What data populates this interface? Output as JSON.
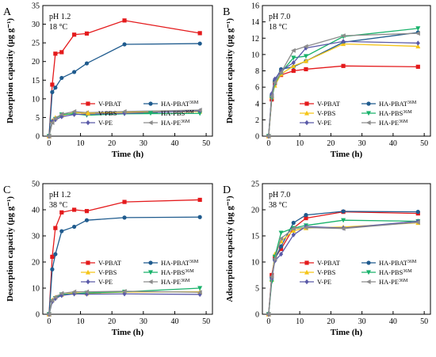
{
  "chart_data": [
    {
      "panel": "A",
      "type": "line",
      "condition_ph": "pH 1.2",
      "condition_temp": "18 °C",
      "xlabel": "Time (h)",
      "ylabel": "Desorption capacity (µg g⁻¹)",
      "xlim": [
        -2,
        52
      ],
      "ylim": [
        0,
        35
      ],
      "xticks": [
        0,
        10,
        20,
        30,
        40,
        50
      ],
      "yticks": [
        0,
        5,
        10,
        15,
        20,
        25,
        30,
        35
      ],
      "legend_position": "bottom-center",
      "x": [
        0,
        1,
        2,
        4,
        8,
        12,
        24,
        48
      ],
      "series": [
        {
          "name": "V-PBAT",
          "color": "#e41a1c",
          "marker": "square",
          "values": [
            0,
            13.8,
            22.1,
            22.5,
            27.2,
            27.5,
            31.0,
            27.6
          ]
        },
        {
          "name": "HA-PBAT",
          "sup": "36M",
          "color": "#1f5b8e",
          "marker": "circle",
          "values": [
            0,
            11.8,
            13.0,
            15.6,
            17.2,
            19.5,
            24.6,
            24.8
          ]
        },
        {
          "name": "V-PBS",
          "color": "#f5c518",
          "marker": "triangle-up",
          "values": [
            0,
            4.2,
            5.0,
            5.5,
            6.3,
            6.2,
            6.4,
            6.6
          ]
        },
        {
          "name": "HA-PBS",
          "sup": "36M",
          "color": "#19b26b",
          "marker": "triangle-down",
          "values": [
            0,
            3.8,
            4.6,
            5.8,
            6.0,
            5.6,
            6.0,
            6.1
          ]
        },
        {
          "name": "V-PE",
          "color": "#5a5aa8",
          "marker": "diamond",
          "values": [
            0,
            4.0,
            4.4,
            5.2,
            5.8,
            5.9,
            6.1,
            6.8
          ]
        },
        {
          "name": "HA-PE",
          "sup": "36M",
          "color": "#8c8c8c",
          "marker": "triangle-left",
          "values": [
            0,
            3.6,
            4.8,
            5.9,
            6.6,
            6.3,
            6.6,
            7.0
          ]
        }
      ]
    },
    {
      "panel": "B",
      "type": "line",
      "condition_ph": "pH 7.0",
      "condition_temp": "18 °C",
      "xlabel": "Time (h)",
      "ylabel": "Desorption capacity (µg g⁻¹)",
      "xlim": [
        -2,
        52
      ],
      "ylim": [
        0,
        16
      ],
      "xticks": [
        0,
        10,
        20,
        30,
        40,
        50
      ],
      "yticks": [
        0,
        2,
        4,
        6,
        8,
        10,
        12,
        14,
        16
      ],
      "legend_position": "bottom-center",
      "x": [
        0,
        1,
        2,
        4,
        8,
        12,
        24,
        48
      ],
      "series": [
        {
          "name": "V-PBAT",
          "color": "#e41a1c",
          "marker": "square",
          "values": [
            0,
            4.5,
            6.5,
            7.5,
            8.0,
            8.2,
            8.6,
            8.5
          ]
        },
        {
          "name": "HA-PBAT",
          "sup": "36M",
          "color": "#1f5b8e",
          "marker": "circle",
          "values": [
            0,
            5.0,
            6.8,
            8.2,
            8.5,
            9.2,
            11.5,
            12.7
          ]
        },
        {
          "name": "V-PBS",
          "color": "#f5c518",
          "marker": "triangle-up",
          "values": [
            0,
            4.8,
            6.2,
            7.6,
            8.6,
            9.2,
            11.3,
            11.0
          ]
        },
        {
          "name": "HA-PBS",
          "sup": "36M",
          "color": "#19b26b",
          "marker": "triangle-down",
          "values": [
            0,
            4.6,
            6.4,
            7.8,
            9.6,
            9.8,
            12.2,
            13.2
          ]
        },
        {
          "name": "V-PE",
          "color": "#5a5aa8",
          "marker": "diamond",
          "values": [
            0,
            5.2,
            7.0,
            8.0,
            9.0,
            10.8,
            11.6,
            11.4
          ]
        },
        {
          "name": "HA-PE",
          "sup": "36M",
          "color": "#8c8c8c",
          "marker": "triangle-left",
          "values": [
            0,
            4.9,
            6.6,
            7.8,
            10.5,
            11.0,
            12.3,
            12.6
          ]
        }
      ]
    },
    {
      "panel": "C",
      "type": "line",
      "condition_ph": "pH 1.2",
      "condition_temp": "38 °C",
      "xlabel": "Time (h)",
      "ylabel": "Desorption capacity (µg g⁻¹)",
      "xlim": [
        -2,
        52
      ],
      "ylim": [
        0,
        50
      ],
      "xticks": [
        0,
        10,
        20,
        30,
        40,
        50
      ],
      "yticks": [
        0,
        10,
        20,
        30,
        40,
        50
      ],
      "legend_position": "bottom-center",
      "x": [
        0,
        1,
        2,
        4,
        8,
        12,
        24,
        48
      ],
      "series": [
        {
          "name": "V-PBAT",
          "color": "#e41a1c",
          "marker": "square",
          "values": [
            0,
            22.0,
            33.0,
            39.0,
            40.0,
            39.5,
            43.0,
            43.8
          ]
        },
        {
          "name": "HA-PBAT",
          "sup": "36M",
          "color": "#1f5b8e",
          "marker": "circle",
          "values": [
            0,
            17.2,
            23.0,
            31.8,
            33.5,
            36.0,
            37.0,
            37.2
          ]
        },
        {
          "name": "V-PBS",
          "color": "#f5c518",
          "marker": "triangle-up",
          "values": [
            0,
            5.5,
            6.5,
            7.5,
            8.2,
            8.0,
            8.5,
            8.6
          ]
        },
        {
          "name": "HA-PBS",
          "sup": "36M",
          "color": "#19b26b",
          "marker": "triangle-down",
          "values": [
            0,
            5.0,
            6.2,
            7.6,
            7.8,
            8.2,
            8.6,
            10.0
          ]
        },
        {
          "name": "V-PE",
          "color": "#5a5aa8",
          "marker": "diamond",
          "values": [
            0,
            4.8,
            6.0,
            7.2,
            7.8,
            7.7,
            7.8,
            7.6
          ]
        },
        {
          "name": "HA-PE",
          "sup": "36M",
          "color": "#8c8c8c",
          "marker": "triangle-left",
          "values": [
            0,
            5.4,
            6.6,
            8.0,
            8.6,
            8.6,
            8.8,
            8.4
          ]
        }
      ]
    },
    {
      "panel": "D",
      "type": "line",
      "condition_ph": "pH 7.0",
      "condition_temp": "38 °C",
      "xlabel": "Time (h)",
      "ylabel": "Adsorption capacity (µg g⁻¹)",
      "xlim": [
        -2,
        52
      ],
      "ylim": [
        0,
        25
      ],
      "xticks": [
        0,
        10,
        20,
        30,
        40,
        50
      ],
      "yticks": [
        0,
        5,
        10,
        15,
        20,
        25
      ],
      "legend_position": "bottom-center",
      "x": [
        0,
        1,
        2,
        4,
        8,
        12,
        24,
        48
      ],
      "series": [
        {
          "name": "V-PBAT",
          "color": "#e41a1c",
          "marker": "square",
          "values": [
            0,
            7.5,
            10.8,
            12.5,
            16.5,
            18.4,
            19.6,
            19.3
          ]
        },
        {
          "name": "HA-PBAT",
          "sup": "36M",
          "color": "#1f5b8e",
          "marker": "circle",
          "values": [
            0,
            7.0,
            10.5,
            13.0,
            17.5,
            19.0,
            19.7,
            19.6
          ]
        },
        {
          "name": "V-PBS",
          "color": "#f5c518",
          "marker": "triangle-up",
          "values": [
            0,
            6.6,
            11.5,
            14.0,
            16.0,
            16.5,
            16.7,
            17.5
          ]
        },
        {
          "name": "HA-PBS",
          "sup": "36M",
          "color": "#19b26b",
          "marker": "triangle-down",
          "values": [
            0,
            6.2,
            11.0,
            15.6,
            16.5,
            17.0,
            18.0,
            17.8
          ]
        },
        {
          "name": "V-PE",
          "color": "#5a5aa8",
          "marker": "diamond",
          "values": [
            0,
            6.8,
            10.2,
            11.5,
            15.2,
            16.8,
            16.5,
            17.8
          ]
        },
        {
          "name": "HA-PE",
          "sup": "36M",
          "color": "#8c8c8c",
          "marker": "triangle-left",
          "values": [
            0,
            7.2,
            10.6,
            14.5,
            16.4,
            16.6,
            16.4,
            17.6
          ]
        }
      ]
    }
  ]
}
